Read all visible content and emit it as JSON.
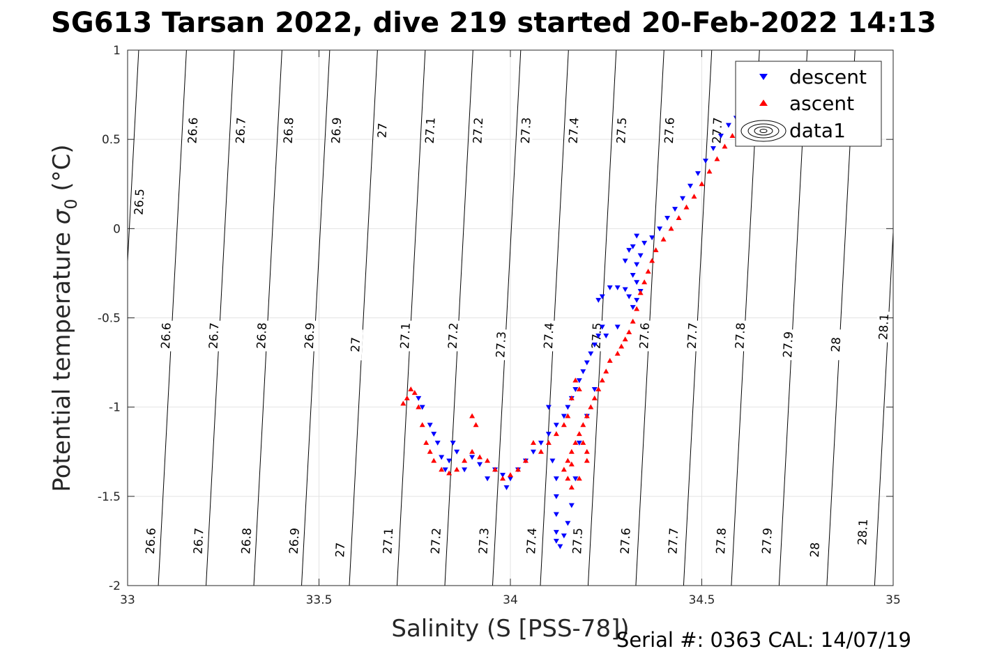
{
  "chart_data": {
    "type": "scatter",
    "title": "SG613 Tarsan 2022, dive 219 started 20-Feb-2022 14:13",
    "xlabel": "Salinity (S [PSS-78])",
    "ylabel_text": "Potential temperature ",
    "ylabel_sigma": "σ",
    "ylabel_sub": "0",
    "ylabel_unit": " (°C)",
    "footer": "Serial #: 0363  CAL: 14/07/19",
    "xlim": [
      33,
      35
    ],
    "ylim": [
      -2,
      1
    ],
    "grid": true,
    "x_ticks": [
      "33",
      "33.5",
      "34",
      "34.5",
      "35"
    ],
    "y_ticks": [
      "1",
      "0.5",
      "0",
      "-0.5",
      "-1",
      "-1.5",
      "-2"
    ],
    "legend": {
      "placement": "top-right",
      "entries": [
        {
          "label": "descent",
          "marker": "triangle-down",
          "color": "#0000ff"
        },
        {
          "label": "ascent",
          "marker": "triangle-up",
          "color": "#ff0000"
        },
        {
          "label": "data1",
          "marker": "contour",
          "color": "#000000"
        }
      ]
    },
    "density_contours": [
      26.5,
      26.6,
      26.7,
      26.8,
      26.9,
      27.0,
      27.1,
      27.2,
      27.3,
      27.4,
      27.5,
      27.6,
      27.7,
      27.8,
      27.9,
      28.0,
      28.1
    ],
    "contour_labels": [
      {
        "text": "26.5",
        "s": 33.03,
        "t": 0.15
      },
      {
        "text": "26.6",
        "s": 33.17,
        "t": 0.55
      },
      {
        "text": "26.7",
        "s": 33.295,
        "t": 0.55
      },
      {
        "text": "26.8",
        "s": 33.42,
        "t": 0.55
      },
      {
        "text": "26.9",
        "s": 33.545,
        "t": 0.55
      },
      {
        "text": "27",
        "s": 33.665,
        "t": 0.55
      },
      {
        "text": "27.1",
        "s": 33.79,
        "t": 0.55
      },
      {
        "text": "27.2",
        "s": 33.915,
        "t": 0.55
      },
      {
        "text": "27.3",
        "s": 34.04,
        "t": 0.55
      },
      {
        "text": "27.4",
        "s": 34.165,
        "t": 0.55
      },
      {
        "text": "27.5",
        "s": 34.29,
        "t": 0.55
      },
      {
        "text": "27.6",
        "s": 34.415,
        "t": 0.55
      },
      {
        "text": "27.7",
        "s": 34.54,
        "t": 0.55
      },
      {
        "text": "26.6",
        "s": 33.1,
        "t": -0.6
      },
      {
        "text": "26.7",
        "s": 33.225,
        "t": -0.6
      },
      {
        "text": "26.8",
        "s": 33.35,
        "t": -0.6
      },
      {
        "text": "26.9",
        "s": 33.475,
        "t": -0.6
      },
      {
        "text": "27",
        "s": 33.595,
        "t": -0.65
      },
      {
        "text": "27.1",
        "s": 33.725,
        "t": -0.6
      },
      {
        "text": "27.2",
        "s": 33.85,
        "t": -0.6
      },
      {
        "text": "27.3",
        "s": 33.975,
        "t": -0.65
      },
      {
        "text": "27.4",
        "s": 34.1,
        "t": -0.6
      },
      {
        "text": "27.5",
        "s": 34.225,
        "t": -0.6
      },
      {
        "text": "27.6",
        "s": 34.35,
        "t": -0.6
      },
      {
        "text": "27.7",
        "s": 34.475,
        "t": -0.6
      },
      {
        "text": "27.8",
        "s": 34.6,
        "t": -0.6
      },
      {
        "text": "27.9",
        "s": 34.725,
        "t": -0.65
      },
      {
        "text": "28",
        "s": 34.85,
        "t": -0.65
      },
      {
        "text": "28.1",
        "s": 34.975,
        "t": -0.55
      },
      {
        "text": "26.6",
        "s": 33.06,
        "t": -1.75
      },
      {
        "text": "26.7",
        "s": 33.185,
        "t": -1.75
      },
      {
        "text": "26.8",
        "s": 33.31,
        "t": -1.75
      },
      {
        "text": "26.9",
        "s": 33.435,
        "t": -1.75
      },
      {
        "text": "27",
        "s": 33.555,
        "t": -1.8
      },
      {
        "text": "27.1",
        "s": 33.68,
        "t": -1.75
      },
      {
        "text": "27.2",
        "s": 33.805,
        "t": -1.75
      },
      {
        "text": "27.3",
        "s": 33.93,
        "t": -1.75
      },
      {
        "text": "27.4",
        "s": 34.055,
        "t": -1.75
      },
      {
        "text": "27.5",
        "s": 34.175,
        "t": -1.75
      },
      {
        "text": "27.6",
        "s": 34.3,
        "t": -1.75
      },
      {
        "text": "27.7",
        "s": 34.425,
        "t": -1.75
      },
      {
        "text": "27.8",
        "s": 34.55,
        "t": -1.75
      },
      {
        "text": "27.9",
        "s": 34.67,
        "t": -1.75
      },
      {
        "text": "28",
        "s": 34.795,
        "t": -1.8
      },
      {
        "text": "28.1",
        "s": 34.92,
        "t": -1.7
      }
    ],
    "series": [
      {
        "name": "descent",
        "color": "#0000ff",
        "marker": "triangle-down",
        "points": [
          [
            34.59,
            0.62
          ],
          [
            34.57,
            0.58
          ],
          [
            34.55,
            0.52
          ],
          [
            34.53,
            0.45
          ],
          [
            34.51,
            0.38
          ],
          [
            34.49,
            0.31
          ],
          [
            34.47,
            0.24
          ],
          [
            34.45,
            0.17
          ],
          [
            34.43,
            0.11
          ],
          [
            34.41,
            0.06
          ],
          [
            34.39,
            0.0
          ],
          [
            34.37,
            -0.05
          ],
          [
            34.35,
            -0.08
          ],
          [
            34.33,
            -0.04
          ],
          [
            34.32,
            -0.1
          ],
          [
            34.34,
            -0.15
          ],
          [
            34.33,
            -0.2
          ],
          [
            34.31,
            -0.12
          ],
          [
            34.3,
            -0.18
          ],
          [
            34.32,
            -0.26
          ],
          [
            34.33,
            -0.3
          ],
          [
            34.34,
            -0.35
          ],
          [
            34.33,
            -0.4
          ],
          [
            34.32,
            -0.44
          ],
          [
            34.31,
            -0.38
          ],
          [
            34.3,
            -0.34
          ],
          [
            34.28,
            -0.33
          ],
          [
            34.26,
            -0.33
          ],
          [
            34.24,
            -0.38
          ],
          [
            34.23,
            -0.4
          ],
          [
            34.24,
            -0.55
          ],
          [
            34.23,
            -0.6
          ],
          [
            34.22,
            -0.65
          ],
          [
            34.21,
            -0.7
          ],
          [
            34.2,
            -0.75
          ],
          [
            34.19,
            -0.8
          ],
          [
            34.18,
            -0.85
          ],
          [
            34.17,
            -0.9
          ],
          [
            34.16,
            -0.95
          ],
          [
            34.15,
            -1.0
          ],
          [
            34.14,
            -1.05
          ],
          [
            34.12,
            -1.1
          ],
          [
            34.1,
            -1.15
          ],
          [
            34.08,
            -1.2
          ],
          [
            34.06,
            -1.25
          ],
          [
            34.04,
            -1.3
          ],
          [
            34.02,
            -1.35
          ],
          [
            34.0,
            -1.4
          ],
          [
            33.99,
            -1.45
          ],
          [
            33.98,
            -1.38
          ],
          [
            33.96,
            -1.35
          ],
          [
            33.94,
            -1.4
          ],
          [
            33.92,
            -1.32
          ],
          [
            33.9,
            -1.28
          ],
          [
            33.88,
            -1.35
          ],
          [
            33.86,
            -1.25
          ],
          [
            33.85,
            -1.2
          ],
          [
            33.84,
            -1.3
          ],
          [
            33.83,
            -1.35
          ],
          [
            33.82,
            -1.28
          ],
          [
            33.81,
            -1.2
          ],
          [
            33.8,
            -1.15
          ],
          [
            33.79,
            -1.1
          ],
          [
            33.77,
            -1.0
          ],
          [
            33.76,
            -0.95
          ],
          [
            34.1,
            -1.0
          ],
          [
            34.11,
            -1.3
          ],
          [
            34.12,
            -1.4
          ],
          [
            34.12,
            -1.5
          ],
          [
            34.12,
            -1.6
          ],
          [
            34.12,
            -1.7
          ],
          [
            34.12,
            -1.75
          ],
          [
            34.13,
            -1.78
          ],
          [
            34.14,
            -1.72
          ],
          [
            34.15,
            -1.65
          ],
          [
            34.16,
            -1.55
          ],
          [
            34.17,
            -1.4
          ],
          [
            34.18,
            -1.2
          ],
          [
            34.2,
            -1.05
          ],
          [
            34.22,
            -0.9
          ],
          [
            34.25,
            -0.6
          ],
          [
            34.28,
            -0.55
          ]
        ]
      },
      {
        "name": "ascent",
        "color": "#ff0000",
        "marker": "triangle-up",
        "points": [
          [
            34.6,
            0.58
          ],
          [
            34.58,
            0.52
          ],
          [
            34.56,
            0.46
          ],
          [
            34.54,
            0.39
          ],
          [
            34.52,
            0.32
          ],
          [
            34.5,
            0.25
          ],
          [
            34.48,
            0.18
          ],
          [
            34.46,
            0.12
          ],
          [
            34.44,
            0.06
          ],
          [
            34.42,
            0.0
          ],
          [
            34.4,
            -0.06
          ],
          [
            34.38,
            -0.12
          ],
          [
            34.37,
            -0.18
          ],
          [
            34.36,
            -0.24
          ],
          [
            34.35,
            -0.3
          ],
          [
            34.34,
            -0.36
          ],
          [
            34.33,
            -0.45
          ],
          [
            34.32,
            -0.52
          ],
          [
            34.31,
            -0.58
          ],
          [
            34.3,
            -0.62
          ],
          [
            34.29,
            -0.66
          ],
          [
            34.28,
            -0.7
          ],
          [
            34.26,
            -0.74
          ],
          [
            34.25,
            -0.8
          ],
          [
            34.24,
            -0.85
          ],
          [
            34.23,
            -0.9
          ],
          [
            34.22,
            -0.95
          ],
          [
            34.21,
            -1.0
          ],
          [
            34.2,
            -1.05
          ],
          [
            34.19,
            -1.1
          ],
          [
            34.18,
            -1.15
          ],
          [
            34.17,
            -1.2
          ],
          [
            34.16,
            -1.25
          ],
          [
            34.15,
            -1.3
          ],
          [
            34.14,
            -1.35
          ],
          [
            34.16,
            -1.45
          ],
          [
            34.18,
            -1.4
          ],
          [
            34.2,
            -1.3
          ],
          [
            34.19,
            -1.2
          ],
          [
            34.18,
            -0.9
          ],
          [
            34.17,
            -0.85
          ],
          [
            34.16,
            -0.95
          ],
          [
            34.15,
            -1.05
          ],
          [
            34.14,
            -1.1
          ],
          [
            34.12,
            -1.15
          ],
          [
            34.1,
            -1.2
          ],
          [
            34.08,
            -1.25
          ],
          [
            34.06,
            -1.2
          ],
          [
            34.04,
            -1.3
          ],
          [
            34.02,
            -1.35
          ],
          [
            34.0,
            -1.38
          ],
          [
            33.98,
            -1.4
          ],
          [
            33.96,
            -1.35
          ],
          [
            33.94,
            -1.3
          ],
          [
            33.92,
            -1.28
          ],
          [
            33.9,
            -1.25
          ],
          [
            33.91,
            -1.1
          ],
          [
            33.9,
            -1.05
          ],
          [
            33.88,
            -1.3
          ],
          [
            33.86,
            -1.35
          ],
          [
            33.84,
            -1.37
          ],
          [
            33.82,
            -1.35
          ],
          [
            33.8,
            -1.3
          ],
          [
            33.79,
            -1.25
          ],
          [
            33.78,
            -1.2
          ],
          [
            33.77,
            -1.1
          ],
          [
            33.76,
            -1.0
          ],
          [
            33.75,
            -0.92
          ],
          [
            33.74,
            -0.9
          ],
          [
            33.73,
            -0.95
          ],
          [
            33.72,
            -0.98
          ],
          [
            34.15,
            -1.4
          ],
          [
            34.16,
            -1.32
          ],
          [
            34.2,
            -1.25
          ]
        ]
      }
    ]
  }
}
